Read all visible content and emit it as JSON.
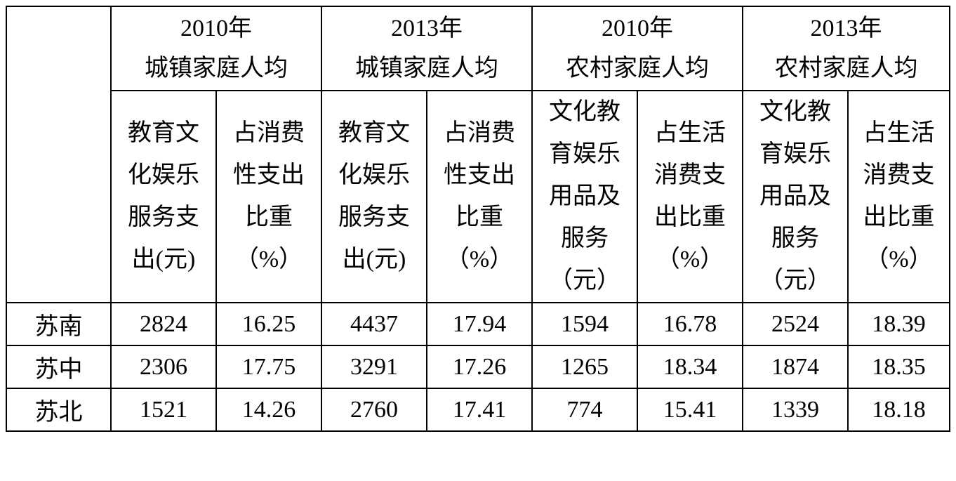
{
  "table": {
    "groups": [
      [
        "2010年",
        "城镇家庭人均"
      ],
      [
        "2013年",
        "城镇家庭人均"
      ],
      [
        "2010年",
        "农村家庭人均"
      ],
      [
        "2013年",
        "农村家庭人均"
      ]
    ],
    "columns": [
      [
        "教育文",
        "化娱乐",
        "服务支",
        "出(元)"
      ],
      [
        "占消费",
        "性支出",
        "比重",
        "（%）"
      ],
      [
        "教育文",
        "化娱乐",
        "服务支",
        "出(元)"
      ],
      [
        "占消费",
        "性支出",
        "比重",
        "（%）"
      ],
      [
        "文化教",
        "育娱乐",
        "用品及",
        "服务",
        "（元）"
      ],
      [
        "占生活",
        "消费支",
        "出比重",
        "（%）"
      ],
      [
        "文化教",
        "育娱乐",
        "用品及",
        "服务",
        "（元）"
      ],
      [
        "占生活",
        "消费支",
        "出比重",
        "（%）"
      ]
    ],
    "rows": [
      {
        "region": "苏南",
        "values": [
          2824,
          16.25,
          4437,
          17.94,
          1594,
          16.78,
          2524,
          18.39
        ]
      },
      {
        "region": "苏中",
        "values": [
          2306,
          17.75,
          3291,
          17.26,
          1265,
          18.34,
          1874,
          18.35
        ]
      },
      {
        "region": "苏北",
        "values": [
          1521,
          14.26,
          2760,
          17.41,
          774,
          15.41,
          1339,
          18.18
        ]
      }
    ]
  }
}
